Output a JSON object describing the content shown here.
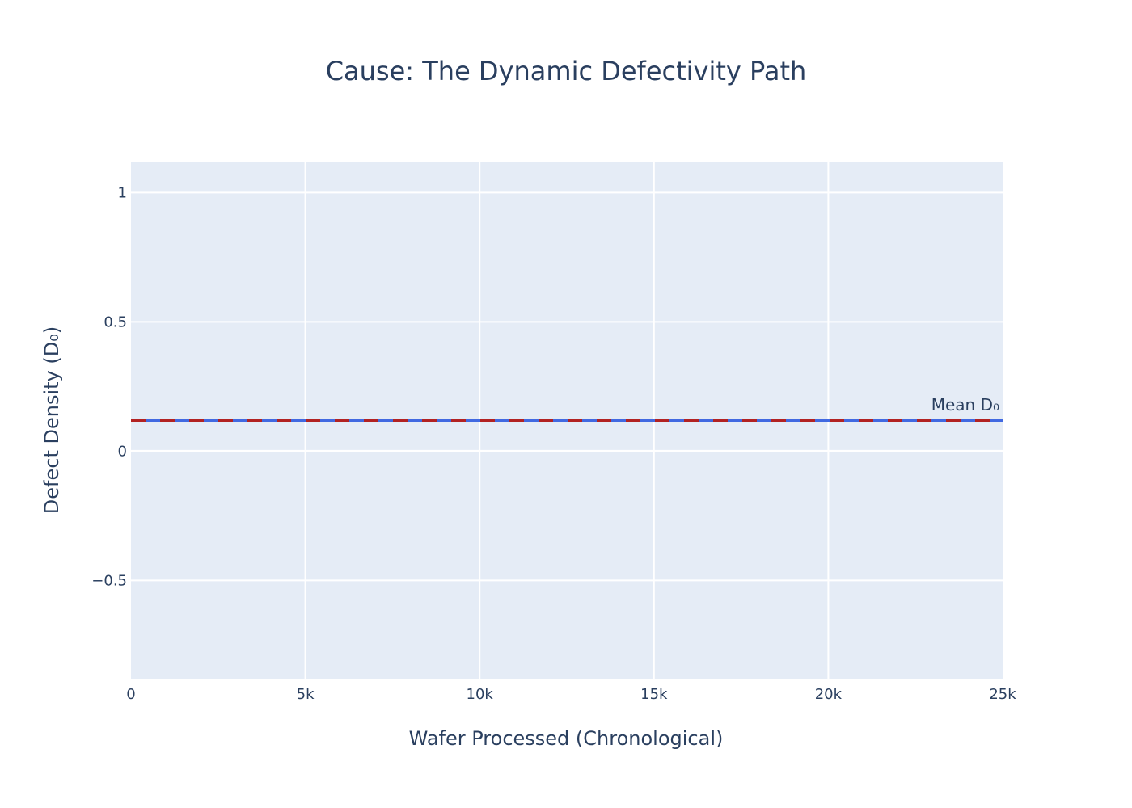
{
  "chart_data": {
    "type": "line",
    "title": "Cause: The Dynamic Defectivity Path",
    "xlabel": "Wafer Processed (Chronological)",
    "ylabel": "Defect Density (D₀)",
    "xlim": [
      0,
      25000
    ],
    "ylim": [
      -0.88,
      1.12
    ],
    "x_ticks": [
      0,
      5000,
      10000,
      15000,
      20000,
      25000
    ],
    "x_tick_labels": [
      "0",
      "5k",
      "10k",
      "15k",
      "20k",
      "25k"
    ],
    "y_ticks": [
      -0.5,
      0,
      0.5,
      1
    ],
    "y_tick_labels": [
      "−0.5",
      "0",
      "0.5",
      "1"
    ],
    "grid": true,
    "series": [
      {
        "x": [
          0,
          25000
        ],
        "y": [
          0.12,
          0.12
        ],
        "color": "#4169e1",
        "dash": "solid"
      }
    ],
    "reference_lines": [
      {
        "y": 0.12,
        "color": "#b22222",
        "dash": "dash",
        "label": "Mean D₀"
      }
    ],
    "colors": {
      "plot_bg": "#e5ecf6",
      "grid": "#ffffff",
      "text": "#2a3f5f"
    }
  }
}
